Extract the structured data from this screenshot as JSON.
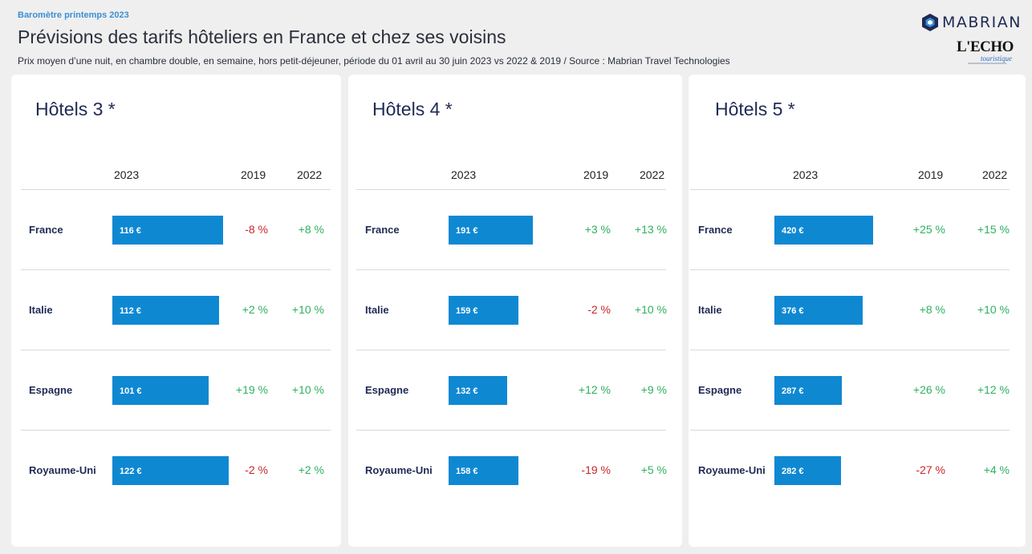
{
  "header": {
    "kicker": "Baromètre printemps 2023",
    "title": "Prévisions des tarifs hôteliers en France et chez ses voisins",
    "subtitle": "Prix moyen d’une nuit, en chambre double, en semaine, hors petit-déjeuner, période du 01 avril au 30 juin 2023 vs 2022 & 2019 / Source : Mabrian Travel Technologies"
  },
  "logos": {
    "mabrian": "MABRIAN",
    "echo": "L'ECHO",
    "echo_sub": "touristique"
  },
  "colors": {
    "bar": "#0f88d2",
    "positive": "#2eb060",
    "negative": "#c8262b",
    "title": "#1f2a55"
  },
  "chart_data": [
    {
      "type": "bar",
      "title": "Hôtels 3 *",
      "columns": [
        "2023",
        "2019",
        "2022"
      ],
      "categories": [
        "France",
        "Italie",
        "Espagne",
        "Royaume-Uni"
      ],
      "values": [
        116,
        112,
        101,
        122
      ],
      "value_labels": [
        "116 €",
        "112 €",
        "101 €",
        "122 €"
      ],
      "var_2019": [
        "-8 %",
        "+2 %",
        "+19 %",
        "-2 %"
      ],
      "var_2022": [
        "+8 %",
        "+10 %",
        "+10 %",
        "+2 %"
      ]
    },
    {
      "type": "bar",
      "title": "Hôtels 4 *",
      "columns": [
        "2023",
        "2019",
        "2022"
      ],
      "categories": [
        "France",
        "Italie",
        "Espagne",
        "Royaume-Uni"
      ],
      "values": [
        191,
        159,
        132,
        158
      ],
      "value_labels": [
        "191 €",
        "159 €",
        "132 €",
        "158 €"
      ],
      "var_2019": [
        "+3 %",
        "-2 %",
        "+12 %",
        "-19 %"
      ],
      "var_2022": [
        "+13 %",
        "+10 %",
        "+9 %",
        "+5 %"
      ]
    },
    {
      "type": "bar",
      "title": "Hôtels 5 *",
      "columns": [
        "2023",
        "2019",
        "2022"
      ],
      "categories": [
        "France",
        "Italie",
        "Espagne",
        "Royaume-Uni"
      ],
      "values": [
        420,
        376,
        287,
        282
      ],
      "value_labels": [
        "420 €",
        "376 €",
        "287 €",
        "282 €"
      ],
      "var_2019": [
        "+25 %",
        "+8 %",
        "+26 %",
        "-27 %"
      ],
      "var_2022": [
        "+15 %",
        "+10 %",
        "+12 %",
        "+4 %"
      ]
    }
  ]
}
